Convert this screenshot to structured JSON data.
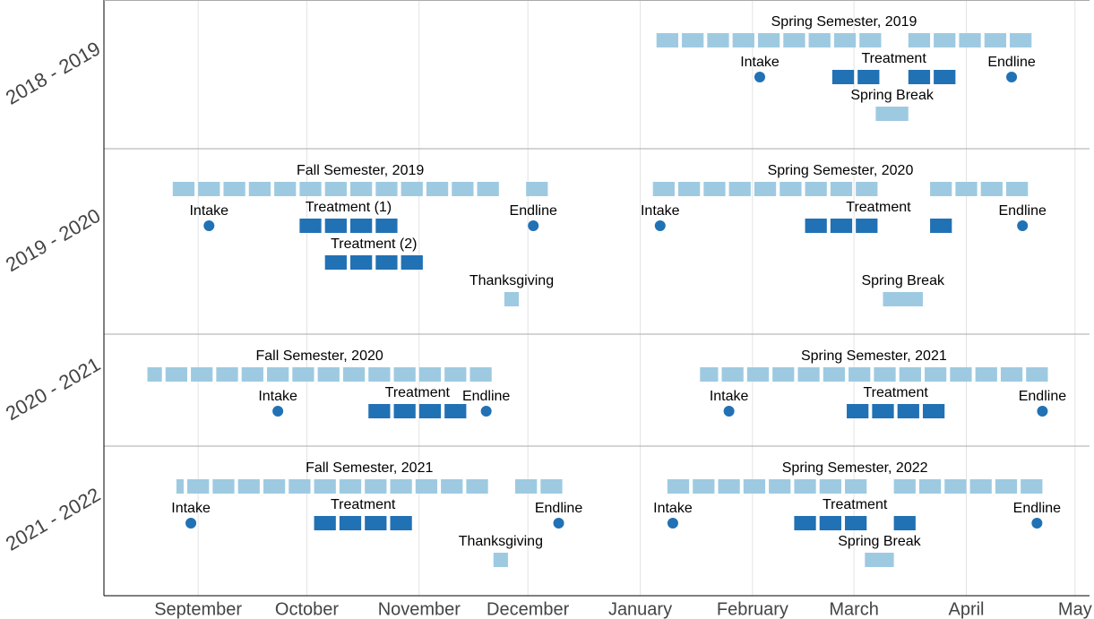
{
  "chart_data": {
    "type": "timeline",
    "xlim": [
      -26,
      246
    ],
    "xticks": [
      {
        "value": 0,
        "label": "September"
      },
      {
        "value": 30,
        "label": "October"
      },
      {
        "value": 61,
        "label": "November"
      },
      {
        "value": 91,
        "label": "December"
      },
      {
        "value": 122,
        "label": "January"
      },
      {
        "value": 153,
        "label": "February"
      },
      {
        "value": 181,
        "label": "March"
      },
      {
        "value": 212,
        "label": "April"
      },
      {
        "value": 242,
        "label": "May"
      }
    ],
    "grid": true,
    "colors": {
      "semester": "#9ecae1",
      "break": "#9ecae1",
      "treatment": "#2171b5",
      "event": "#2171b5"
    },
    "rows": [
      {
        "label": "2018 - 2019",
        "items": [
          {
            "kind": "semester",
            "label": "Spring Semester, 2019",
            "blocks": [
              [
                126.5,
                132.5
              ],
              [
                133.5,
                139.5
              ],
              [
                140.5,
                146.5
              ],
              [
                147.5,
                153.5
              ],
              [
                154.5,
                160.5
              ],
              [
                161.5,
                167.5
              ],
              [
                168.5,
                174.5
              ],
              [
                175.5,
                181.5
              ],
              [
                182.5,
                188.5
              ],
              [
                196,
                202
              ],
              [
                203,
                209
              ],
              [
                210,
                216
              ],
              [
                217,
                223
              ],
              [
                224,
                230
              ]
            ]
          },
          {
            "kind": "event",
            "label": "Intake",
            "x": 155
          },
          {
            "kind": "treatment",
            "label": "Treatment",
            "blocks": [
              [
                175,
                181
              ],
              [
                182,
                188
              ],
              [
                196,
                202
              ],
              [
                203,
                209
              ]
            ]
          },
          {
            "kind": "event",
            "label": "Endline",
            "x": 224.5
          },
          {
            "kind": "break",
            "label": "Spring Break",
            "blocks": [
              [
                187,
                196
              ]
            ]
          }
        ]
      },
      {
        "label": "2019 - 2020",
        "items": [
          {
            "kind": "semester",
            "label": "Fall Semester, 2019",
            "blocks": [
              [
                -7,
                -1
              ],
              [
                0,
                6
              ],
              [
                7,
                13
              ],
              [
                14,
                20
              ],
              [
                21,
                27
              ],
              [
                28,
                34
              ],
              [
                35,
                41
              ],
              [
                42,
                48
              ],
              [
                49,
                55
              ],
              [
                56,
                62
              ],
              [
                63,
                69
              ],
              [
                70,
                76
              ],
              [
                77,
                83
              ],
              [
                90.5,
                96.5
              ]
            ]
          },
          {
            "kind": "event",
            "label": "Intake",
            "x": 3
          },
          {
            "kind": "treatment",
            "label": "Treatment (1)",
            "blocks": [
              [
                28,
                34
              ],
              [
                35,
                41
              ],
              [
                42,
                48
              ],
              [
                49,
                55
              ]
            ]
          },
          {
            "kind": "event",
            "label": "Endline",
            "x": 92.5
          },
          {
            "kind": "treatment",
            "label": "Treatment (2)",
            "blocks": [
              [
                35,
                41
              ],
              [
                42,
                48
              ],
              [
                49,
                55
              ],
              [
                56,
                62
              ]
            ]
          },
          {
            "kind": "break",
            "label": "Thanksgiving",
            "blocks": [
              [
                84.5,
                88.5
              ]
            ]
          },
          {
            "kind": "semester",
            "label": "Spring Semester, 2020",
            "blocks": [
              [
                125.5,
                131.5
              ],
              [
                132.5,
                138.5
              ],
              [
                139.5,
                145.5
              ],
              [
                146.5,
                152.5
              ],
              [
                153.5,
                159.5
              ],
              [
                160.5,
                166.5
              ],
              [
                167.5,
                173.5
              ],
              [
                174.5,
                180.5
              ],
              [
                181.5,
                187.5
              ],
              [
                202,
                208
              ],
              [
                209,
                215
              ],
              [
                216,
                222
              ],
              [
                223,
                229
              ]
            ]
          },
          {
            "kind": "event",
            "label": "Intake",
            "x": 127.5
          },
          {
            "kind": "treatment",
            "label": "Treatment",
            "blocks": [
              [
                167.5,
                173.5
              ],
              [
                174.5,
                180.5
              ],
              [
                181.5,
                187.5
              ],
              [
                202,
                208
              ]
            ]
          },
          {
            "kind": "event",
            "label": "Endline",
            "x": 227.5
          },
          {
            "kind": "break",
            "label": "Spring Break",
            "blocks": [
              [
                189,
                200
              ]
            ]
          }
        ]
      },
      {
        "label": "2020 - 2021",
        "items": [
          {
            "kind": "semester",
            "label": "Fall Semester, 2020",
            "blocks": [
              [
                -14,
                -10
              ],
              [
                -9,
                -3
              ],
              [
                -2,
                4
              ],
              [
                5,
                11
              ],
              [
                12,
                18
              ],
              [
                19,
                25
              ],
              [
                26,
                32
              ],
              [
                33,
                39
              ],
              [
                40,
                46
              ],
              [
                47,
                53
              ],
              [
                54,
                60
              ],
              [
                61,
                67
              ],
              [
                68,
                74
              ],
              [
                75,
                81
              ]
            ]
          },
          {
            "kind": "event",
            "label": "Intake",
            "x": 22
          },
          {
            "kind": "treatment",
            "label": "Treatment",
            "blocks": [
              [
                47,
                53
              ],
              [
                54,
                60
              ],
              [
                61,
                67
              ],
              [
                68,
                74
              ]
            ]
          },
          {
            "kind": "event",
            "label": "Endline",
            "x": 79.5
          },
          {
            "kind": "semester",
            "label": "Spring Semester, 2021",
            "blocks": [
              [
                138.5,
                143.5
              ],
              [
                144.5,
                150.5
              ],
              [
                151.5,
                157.5
              ],
              [
                158.5,
                164.5
              ],
              [
                165.5,
                171.5
              ],
              [
                172.5,
                178.5
              ],
              [
                179.5,
                185.5
              ],
              [
                186.5,
                192.5
              ],
              [
                193.5,
                199.5
              ],
              [
                200.5,
                206.5
              ],
              [
                207.5,
                213.5
              ],
              [
                214.5,
                220.5
              ],
              [
                221.5,
                227.5
              ],
              [
                228.5,
                234.5
              ]
            ]
          },
          {
            "kind": "event",
            "label": "Intake",
            "x": 146.5
          },
          {
            "kind": "treatment",
            "label": "Treatment",
            "blocks": [
              [
                179,
                185
              ],
              [
                186,
                192
              ],
              [
                193,
                199
              ],
              [
                200,
                206
              ]
            ]
          },
          {
            "kind": "event",
            "label": "Endline",
            "x": 233
          }
        ]
      },
      {
        "label": "2021 - 2022",
        "items": [
          {
            "kind": "semester",
            "label": "Fall Semester, 2021",
            "blocks": [
              [
                -6,
                -4
              ],
              [
                -3,
                3
              ],
              [
                4,
                10
              ],
              [
                11,
                17
              ],
              [
                18,
                24
              ],
              [
                25,
                31
              ],
              [
                32,
                38
              ],
              [
                39,
                45
              ],
              [
                46,
                52
              ],
              [
                53,
                59
              ],
              [
                60,
                66
              ],
              [
                67,
                73
              ],
              [
                74,
                80
              ],
              [
                87.5,
                93.5
              ],
              [
                94.5,
                100.5
              ]
            ]
          },
          {
            "kind": "event",
            "label": "Intake",
            "x": -2
          },
          {
            "kind": "treatment",
            "label": "Treatment",
            "blocks": [
              [
                32,
                38
              ],
              [
                39,
                45
              ],
              [
                46,
                52
              ],
              [
                53,
                59
              ]
            ]
          },
          {
            "kind": "event",
            "label": "Endline",
            "x": 99.5
          },
          {
            "kind": "break",
            "label": "Thanksgiving",
            "blocks": [
              [
                81.5,
                85.5
              ]
            ]
          },
          {
            "kind": "semester",
            "label": "Spring Semester, 2022",
            "blocks": [
              [
                129.5,
                135.5
              ],
              [
                136.5,
                142.5
              ],
              [
                143.5,
                149.5
              ],
              [
                150.5,
                156.5
              ],
              [
                157.5,
                163.5
              ],
              [
                164.5,
                170.5
              ],
              [
                171.5,
                177.5
              ],
              [
                178.5,
                184.5
              ],
              [
                192,
                198
              ],
              [
                199,
                205
              ],
              [
                206,
                212
              ],
              [
                213,
                219
              ],
              [
                220,
                226
              ],
              [
                227,
                233
              ]
            ]
          },
          {
            "kind": "event",
            "label": "Intake",
            "x": 131
          },
          {
            "kind": "treatment",
            "label": "Treatment",
            "blocks": [
              [
                164.5,
                170.5
              ],
              [
                171.5,
                177.5
              ],
              [
                178.5,
                184.5
              ],
              [
                192,
                198
              ]
            ]
          },
          {
            "kind": "event",
            "label": "Endline",
            "x": 231.5
          },
          {
            "kind": "break",
            "label": "Spring Break",
            "blocks": [
              [
                184,
                192
              ]
            ]
          }
        ]
      }
    ]
  }
}
